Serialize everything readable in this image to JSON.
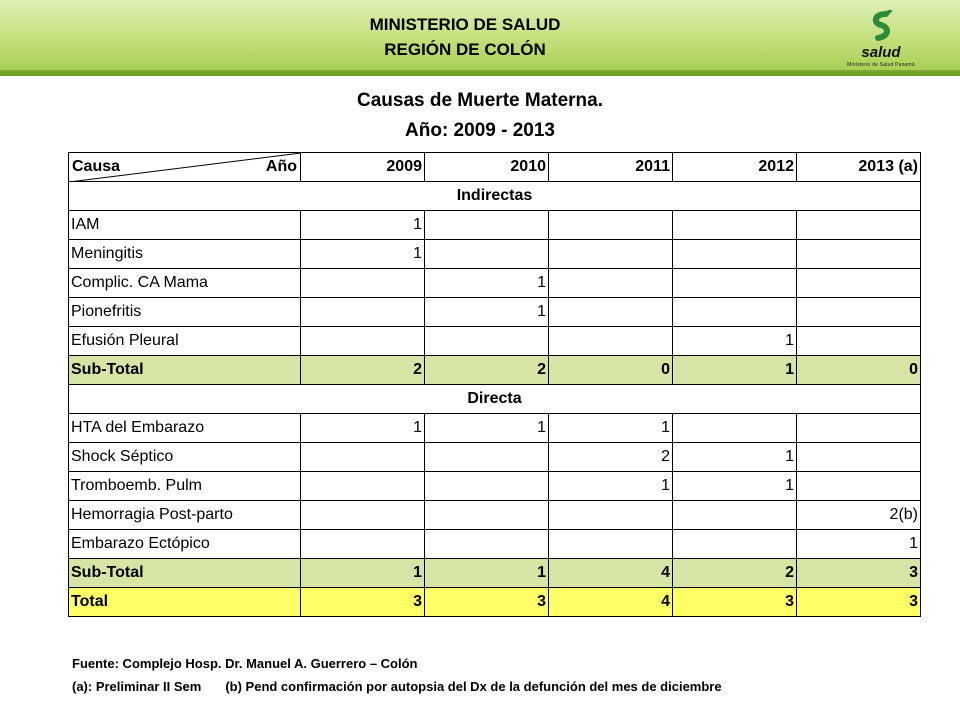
{
  "header": {
    "line1": "MINISTERIO DE SALUD",
    "line2": "REGIÓN DE COLÓN"
  },
  "logo": {
    "icon": "salud-logo-icon",
    "text": "salud",
    "subtext": "Ministerio de Salud",
    "country": "Panamá"
  },
  "title": {
    "line1": "Causas de Muerte Materna.",
    "line2": "Año: 2009 - 2013"
  },
  "table": {
    "corner_left": "Causa",
    "corner_right": "Año",
    "years": [
      "2009",
      "2010",
      "2011",
      "2012",
      "2013 (a)"
    ],
    "section_indirect": "Indirectas",
    "indirect_rows": [
      {
        "cause": "IAM",
        "values": [
          "1",
          "",
          "",
          "",
          ""
        ]
      },
      {
        "cause": "Meningitis",
        "values": [
          "1",
          "",
          "",
          "",
          ""
        ]
      },
      {
        "cause": "Complic. CA Mama",
        "values": [
          "",
          "1",
          "",
          "",
          ""
        ]
      },
      {
        "cause": "Pionefritis",
        "values": [
          "",
          "1",
          "",
          "",
          ""
        ]
      },
      {
        "cause": "Efusión Pleural",
        "values": [
          "",
          "",
          "",
          "1",
          ""
        ]
      }
    ],
    "indirect_subtotal": {
      "label": "Sub-Total",
      "values": [
        "2",
        "2",
        "0",
        "1",
        "0"
      ]
    },
    "section_direct": "Directa",
    "direct_rows": [
      {
        "cause": "HTA del Embarazo",
        "values": [
          "1",
          "1",
          "1",
          "",
          ""
        ]
      },
      {
        "cause": "Shock Séptico",
        "values": [
          "",
          "",
          "2",
          "1",
          ""
        ]
      },
      {
        "cause": "Tromboemb. Pulm",
        "values": [
          "",
          "",
          "1",
          "1",
          ""
        ]
      },
      {
        "cause": "Hemorragia Post-parto",
        "values": [
          "",
          "",
          "",
          "",
          "2(b)"
        ]
      },
      {
        "cause": "Embarazo  Ectópico",
        "values": [
          "",
          "",
          "",
          "",
          "1"
        ]
      }
    ],
    "direct_subtotal": {
      "label": "Sub-Total",
      "values": [
        "1",
        "1",
        "4",
        "2",
        "3"
      ]
    },
    "total": {
      "label": "Total",
      "values": [
        "3",
        "3",
        "4",
        "3",
        "3"
      ]
    }
  },
  "footnotes": {
    "source": "Fuente: Complejo Hosp. Dr. Manuel A. Guerrero – Colón",
    "note_a": "(a): Preliminar II Sem",
    "note_b": "(b) Pend confirmación por autopsia del Dx de la defunción del mes de diciembre"
  },
  "colors": {
    "header_green": "#a8cf55",
    "subtotal_fill": "#d6e4a6",
    "total_fill": "#ffff66"
  }
}
